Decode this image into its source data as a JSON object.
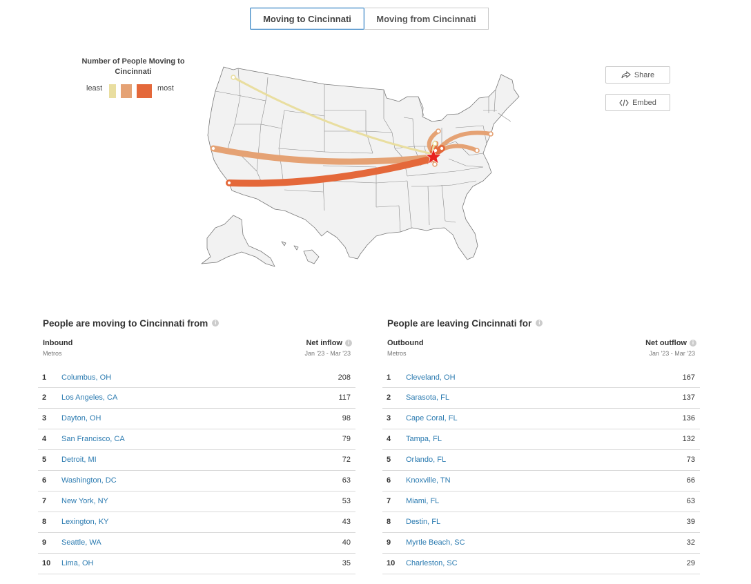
{
  "toggle": {
    "to_label": "Moving to Cincinnati",
    "from_label": "Moving from Cincinnati"
  },
  "legend": {
    "title": "Number of People Moving to Cincinnati",
    "least": "least",
    "most": "most",
    "colors": [
      "#e9dea0",
      "#e5a274",
      "#e4683a"
    ]
  },
  "actions": {
    "share_label": "Share",
    "embed_label": "Embed"
  },
  "inbound": {
    "title": "People are moving to Cincinnati from",
    "col1": "Inbound",
    "col1_sub": "Metros",
    "col2": "Net inflow",
    "col2_sub": "Jan '23 - Mar '23",
    "rows": [
      {
        "rank": "1",
        "city": "Columbus, OH",
        "value": "208"
      },
      {
        "rank": "2",
        "city": "Los Angeles, CA",
        "value": "117"
      },
      {
        "rank": "3",
        "city": "Dayton, OH",
        "value": "98"
      },
      {
        "rank": "4",
        "city": "San Francisco, CA",
        "value": "79"
      },
      {
        "rank": "5",
        "city": "Detroit, MI",
        "value": "72"
      },
      {
        "rank": "6",
        "city": "Washington, DC",
        "value": "63"
      },
      {
        "rank": "7",
        "city": "New York, NY",
        "value": "53"
      },
      {
        "rank": "8",
        "city": "Lexington, KY",
        "value": "43"
      },
      {
        "rank": "9",
        "city": "Seattle, WA",
        "value": "40"
      },
      {
        "rank": "10",
        "city": "Lima, OH",
        "value": "35"
      }
    ]
  },
  "outbound": {
    "title": "People are leaving Cincinnati for",
    "col1": "Outbound",
    "col1_sub": "Metros",
    "col2": "Net outflow",
    "col2_sub": "Jan '23 - Mar '23",
    "rows": [
      {
        "rank": "1",
        "city": "Cleveland, OH",
        "value": "167"
      },
      {
        "rank": "2",
        "city": "Sarasota, FL",
        "value": "137"
      },
      {
        "rank": "3",
        "city": "Cape Coral, FL",
        "value": "136"
      },
      {
        "rank": "4",
        "city": "Tampa, FL",
        "value": "132"
      },
      {
        "rank": "5",
        "city": "Orlando, FL",
        "value": "73"
      },
      {
        "rank": "6",
        "city": "Knoxville, TN",
        "value": "66"
      },
      {
        "rank": "7",
        "city": "Miami, FL",
        "value": "63"
      },
      {
        "rank": "8",
        "city": "Destin, FL",
        "value": "39"
      },
      {
        "rank": "9",
        "city": "Myrtle Beach, SC",
        "value": "32"
      },
      {
        "rank": "10",
        "city": "Charleston, SC",
        "value": "29"
      }
    ]
  }
}
